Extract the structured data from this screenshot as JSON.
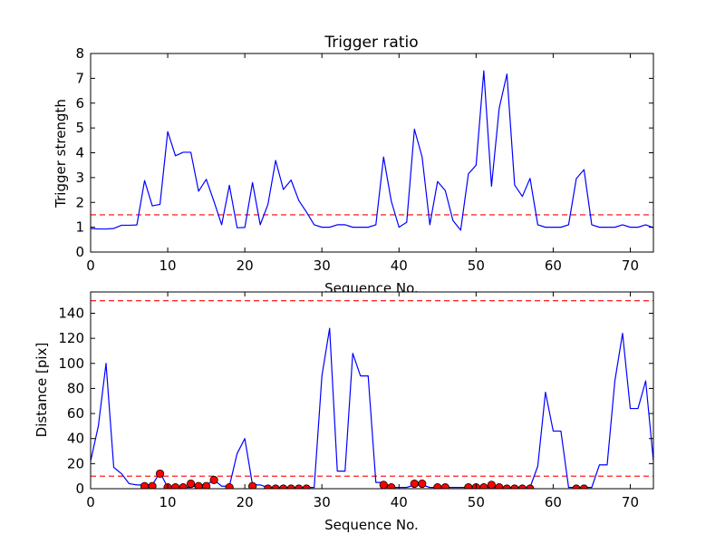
{
  "chart_data": [
    {
      "type": "line",
      "title": "Trigger ratio",
      "xlabel": "Sequence No.",
      "ylabel": "Trigger strength",
      "xlim": [
        0,
        73
      ],
      "ylim": [
        0,
        8
      ],
      "xticks": [
        0,
        10,
        20,
        30,
        40,
        50,
        60,
        70
      ],
      "yticks": [
        0,
        1,
        2,
        3,
        4,
        5,
        6,
        7,
        8
      ],
      "grid": false,
      "series": [
        {
          "color": "#0000ff",
          "style": "solid",
          "x": [
            0,
            1,
            2,
            3,
            4,
            5,
            6,
            7,
            8,
            9,
            10,
            11,
            12,
            13,
            14,
            15,
            16,
            17,
            18,
            19,
            20,
            21,
            22,
            23,
            24,
            25,
            26,
            27,
            28,
            29,
            30,
            31,
            32,
            33,
            34,
            35,
            36,
            37,
            38,
            39,
            40,
            41,
            42,
            43,
            44,
            45,
            46,
            47,
            48,
            49,
            50,
            51,
            52,
            53,
            54,
            55,
            56,
            57,
            58,
            59,
            60,
            61,
            62,
            63,
            64,
            65,
            66,
            67,
            68,
            69,
            70,
            71,
            72,
            73
          ],
          "values": [
            0.95,
            0.93,
            0.93,
            0.95,
            1.08,
            1.08,
            1.09,
            2.88,
            1.86,
            1.92,
            4.85,
            3.88,
            4.02,
            4.02,
            2.45,
            2.93,
            2.04,
            1.1,
            2.69,
            0.98,
            0.99,
            2.8,
            1.1,
            1.92,
            3.69,
            2.52,
            2.9,
            2.08,
            1.61,
            1.1,
            1.0,
            1.0,
            1.1,
            1.1,
            1.0,
            1.0,
            1.0,
            1.1,
            3.83,
            2.05,
            1.0,
            1.2,
            4.95,
            3.83,
            1.1,
            2.84,
            2.48,
            1.27,
            0.88,
            3.15,
            3.5,
            7.3,
            2.65,
            5.8,
            7.17,
            2.7,
            2.24,
            2.97,
            1.1,
            1.0,
            1.0,
            1.0,
            1.1,
            2.96,
            3.32,
            1.1,
            1.0,
            1.0,
            1.0,
            1.1,
            1.0,
            1.0,
            1.1,
            0.98
          ]
        }
      ],
      "reference_lines": [
        {
          "y": 1.5,
          "color": "#ff0000",
          "style": "dashed"
        }
      ]
    },
    {
      "type": "line",
      "title": "",
      "xlabel": "Sequence No.",
      "ylabel": "Distance [pix]",
      "xlim": [
        0,
        73
      ],
      "ylim": [
        0,
        157
      ],
      "xticks": [
        0,
        10,
        20,
        30,
        40,
        50,
        60,
        70
      ],
      "yticks": [
        0,
        20,
        40,
        60,
        80,
        100,
        120,
        140
      ],
      "grid": false,
      "series": [
        {
          "color": "#0000ff",
          "style": "solid",
          "x": [
            0,
            1,
            2,
            3,
            4,
            5,
            6,
            7,
            8,
            9,
            10,
            11,
            12,
            13,
            14,
            15,
            16,
            17,
            18,
            19,
            20,
            21,
            22,
            23,
            24,
            25,
            26,
            27,
            28,
            29,
            30,
            31,
            32,
            33,
            34,
            35,
            36,
            37,
            38,
            39,
            40,
            41,
            42,
            43,
            44,
            45,
            46,
            47,
            48,
            49,
            50,
            51,
            52,
            53,
            54,
            55,
            56,
            57,
            58,
            59,
            60,
            61,
            62,
            63,
            64,
            65,
            66,
            67,
            68,
            69,
            70,
            71,
            72,
            73
          ],
          "values": [
            22,
            50,
            100,
            17,
            12,
            4,
            3,
            3,
            3,
            13,
            1,
            1,
            1,
            1,
            3,
            3,
            7,
            2,
            2,
            28,
            40,
            3,
            3,
            1,
            1,
            1,
            1,
            1,
            1,
            1,
            90,
            128,
            14,
            14,
            108,
            90,
            90,
            5,
            5,
            1,
            1,
            1,
            3,
            3,
            1,
            1,
            1,
            1,
            1,
            1,
            1,
            1,
            1,
            1,
            1,
            1,
            1,
            1,
            18,
            77,
            46,
            46,
            1,
            1,
            1,
            1,
            19,
            19,
            86,
            124,
            64,
            64,
            86,
            22
          ]
        },
        {
          "color": "#ff0000",
          "style": "markers",
          "x": [
            7,
            8,
            9,
            10,
            11,
            12,
            13,
            14,
            15,
            16,
            18,
            21,
            23,
            24,
            25,
            26,
            27,
            28,
            38,
            39,
            42,
            43,
            45,
            46,
            49,
            50,
            51,
            52,
            53,
            54,
            55,
            56,
            57,
            63,
            64
          ],
          "values": [
            2,
            2,
            12,
            1,
            1,
            1,
            4,
            2,
            2,
            7,
            1,
            2,
            0,
            0,
            0,
            0,
            0,
            0,
            3,
            1,
            4,
            4,
            1,
            1,
            1,
            1,
            1,
            3,
            1,
            0,
            0,
            0,
            0,
            0,
            0
          ]
        }
      ],
      "reference_lines": [
        {
          "y": 150,
          "color": "#ff0000",
          "style": "dashed"
        },
        {
          "y": 10,
          "color": "#ff0000",
          "style": "dashed"
        }
      ]
    }
  ]
}
